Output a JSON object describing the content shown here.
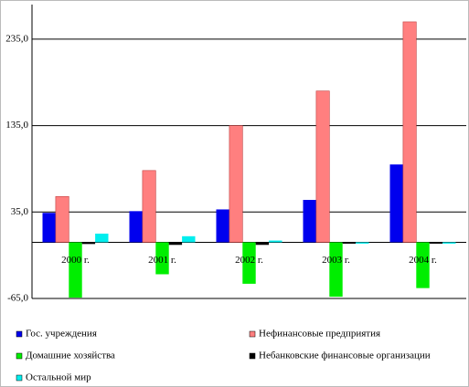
{
  "chart_data": {
    "type": "bar",
    "categories": [
      "2000 г.",
      "2001 г.",
      "2002 г.",
      "2003 г.",
      "2004 г."
    ],
    "series": [
      {
        "name": "Гос. учреждения",
        "color": "#0000ee",
        "values": [
          34,
          36,
          38,
          49,
          90
        ]
      },
      {
        "name": "Нефинансовые предприятия",
        "color": "#ff7f7f",
        "values": [
          53,
          83,
          135,
          175,
          255
        ]
      },
      {
        "name": "Домашние хозяйства",
        "color": "#00ee00",
        "values": [
          -64,
          -37,
          -48,
          -63,
          -53
        ]
      },
      {
        "name": "Небанковские финансовые организации",
        "color": "#000000",
        "values": [
          -2,
          -3,
          -3,
          0,
          -1
        ]
      },
      {
        "name": "Остальной мир",
        "color": "#00eeee",
        "values": [
          10,
          7,
          2,
          0,
          0
        ]
      }
    ],
    "ylim": [
      -65,
      275
    ],
    "yticks": [
      {
        "value": -65,
        "label": "-65,0"
      },
      {
        "value": 35,
        "label": "35,0"
      },
      {
        "value": 135,
        "label": "135,0"
      },
      {
        "value": 235,
        "label": "235,0"
      }
    ],
    "grid": true
  }
}
